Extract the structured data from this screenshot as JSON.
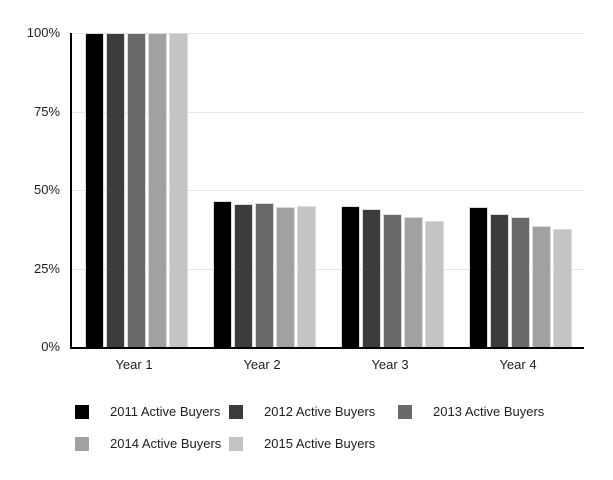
{
  "chart_data": {
    "type": "bar",
    "title": "",
    "xlabel": "",
    "ylabel": "",
    "categories": [
      "Year 1",
      "Year 2",
      "Year 3",
      "Year 4"
    ],
    "series": [
      {
        "name": "2011 Active Buyers",
        "color": "#000000",
        "values": [
          100,
          46.5,
          45,
          44.5
        ]
      },
      {
        "name": "2012 Active Buyers",
        "color": "#3c3c3c",
        "values": [
          100,
          45.5,
          44,
          42.5
        ]
      },
      {
        "name": "2013 Active Buyers",
        "color": "#696969",
        "values": [
          100,
          46,
          42.5,
          41.5
        ]
      },
      {
        "name": "2014 Active Buyers",
        "color": "#a1a1a1",
        "values": [
          100,
          44.5,
          41.5,
          38.5
        ]
      },
      {
        "name": "2015 Active Buyers",
        "color": "#c4c4c4",
        "values": [
          100,
          45,
          40,
          37.5
        ]
      }
    ],
    "ylim": [
      0,
      100
    ],
    "yticks": [
      {
        "value": 0,
        "label": "0%"
      },
      {
        "value": 25,
        "label": "25%"
      },
      {
        "value": 50,
        "label": "50%"
      },
      {
        "value": 75,
        "label": "75%"
      },
      {
        "value": 100,
        "label": "100%"
      }
    ],
    "grid": true,
    "legend_position": "bottom"
  },
  "colors": {
    "background": "#ffffff",
    "gridline": "#e6e6e6",
    "axis": "#000000",
    "text": "#1f1f1f",
    "bar_stroke": "#dcdcdc"
  }
}
